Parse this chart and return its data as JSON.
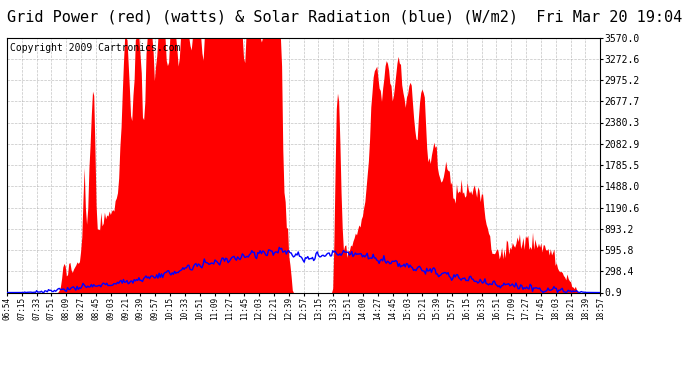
{
  "title": "Grid Power (red) (watts) & Solar Radiation (blue) (W/m2)  Fri Mar 20 19:04",
  "copyright": "Copyright 2009 Cartronics.com",
  "yticks": [
    0.9,
    298.4,
    595.8,
    893.2,
    1190.6,
    1488.0,
    1785.5,
    2082.9,
    2380.3,
    2677.7,
    2975.2,
    3272.6,
    3570.0
  ],
  "ymin": 0.9,
  "ymax": 3570.0,
  "bg_color": "#ffffff",
  "grid_color": "#aaaaaa",
  "fill_color": "#ff0000",
  "line_color": "#0000ff",
  "title_fontsize": 11,
  "copyright_fontsize": 7,
  "time_labels": [
    "06:54",
    "07:15",
    "07:33",
    "07:51",
    "08:09",
    "08:27",
    "08:45",
    "09:03",
    "09:21",
    "09:39",
    "09:57",
    "10:15",
    "10:33",
    "10:51",
    "11:09",
    "11:27",
    "11:45",
    "12:03",
    "12:21",
    "12:39",
    "12:57",
    "13:15",
    "13:33",
    "13:51",
    "14:09",
    "14:27",
    "14:45",
    "15:03",
    "15:21",
    "15:39",
    "15:57",
    "16:15",
    "16:33",
    "16:51",
    "17:09",
    "17:27",
    "17:45",
    "18:03",
    "18:21",
    "18:39",
    "18:57"
  ]
}
